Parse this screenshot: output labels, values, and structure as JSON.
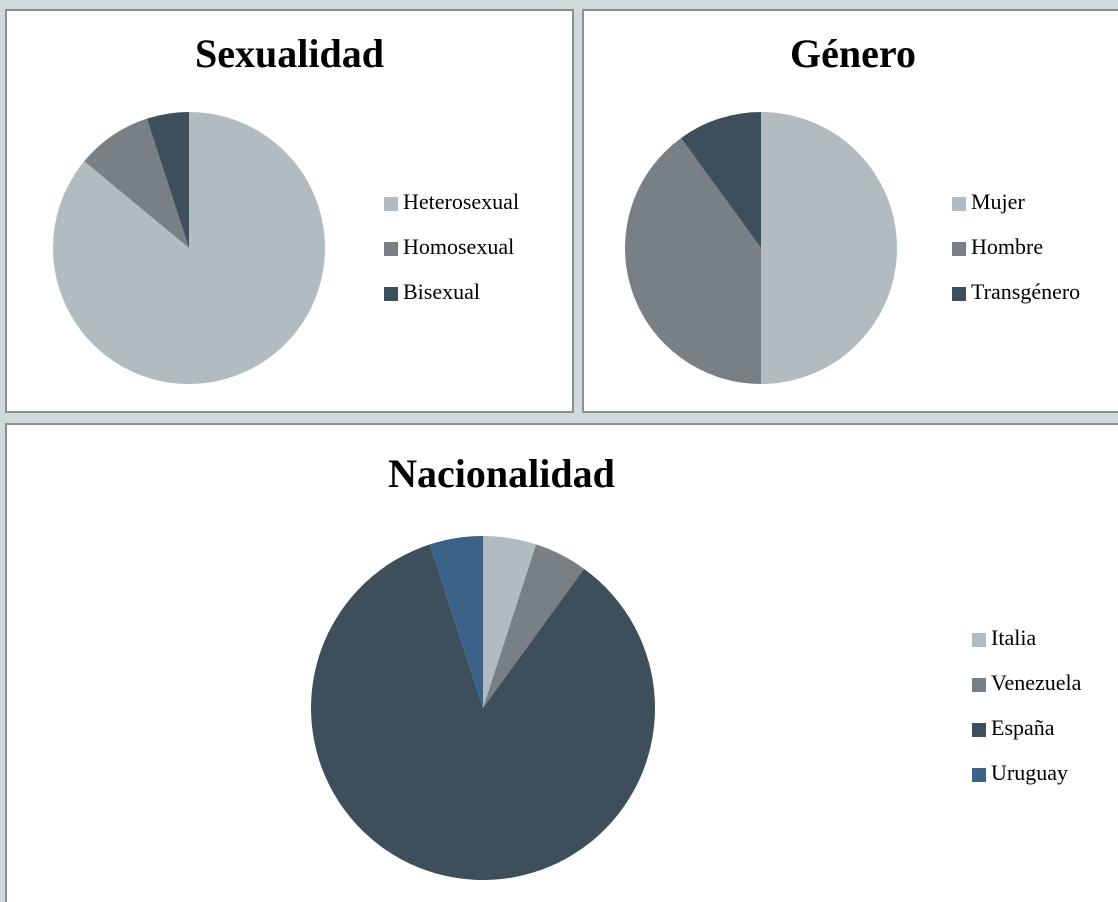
{
  "chart_data": [
    {
      "type": "pie",
      "title": "Sexualidad",
      "categories": [
        "Heterosexual",
        "Homosexual",
        "Bisexual"
      ],
      "values": [
        86,
        9,
        5
      ],
      "colors": [
        "#b2bcc0",
        "#787f85",
        "#3e4f5c"
      ]
    },
    {
      "type": "pie",
      "title": "Género",
      "categories": [
        "Mujer",
        "Hombre",
        "Transgénero"
      ],
      "values": [
        50,
        40,
        10
      ],
      "colors": [
        "#b2bcc0",
        "#787f85",
        "#3e4f5c"
      ]
    },
    {
      "type": "pie",
      "title": "Nacionalidad",
      "categories": [
        "Italia",
        "Venezuela",
        "España",
        "Uruguay"
      ],
      "values": [
        5,
        5,
        85,
        5
      ],
      "colors": [
        "#b2bcc0",
        "#787f85",
        "#3e4f5c",
        "#3b6289"
      ]
    }
  ]
}
